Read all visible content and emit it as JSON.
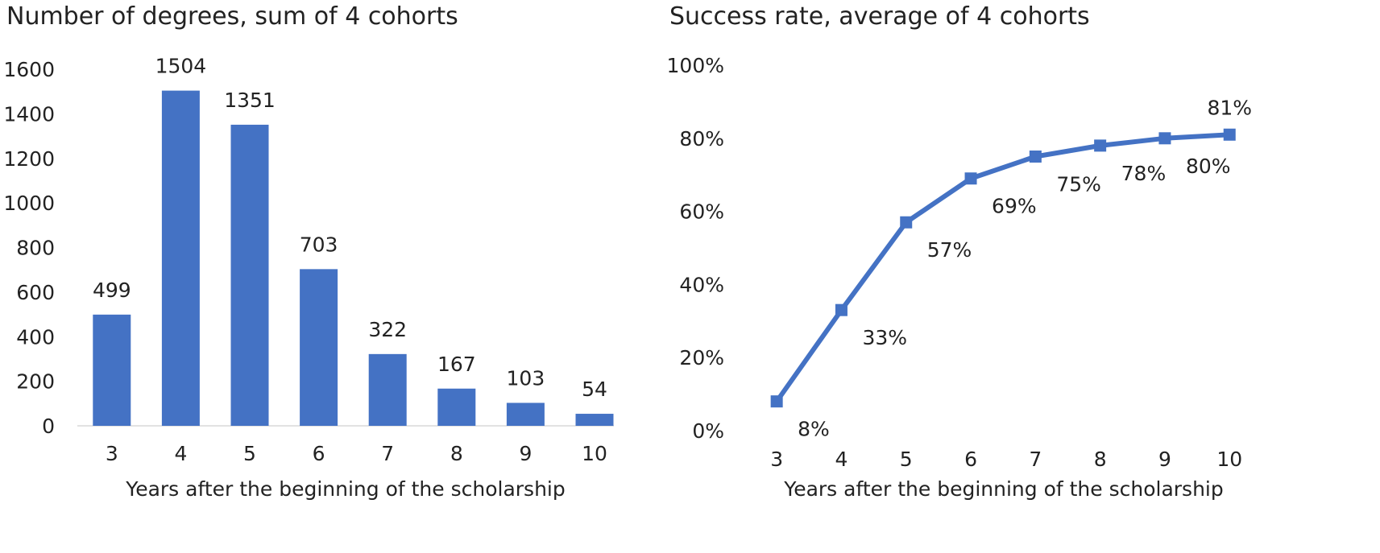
{
  "chart_data": [
    {
      "type": "bar",
      "title": "Number of degrees, sum of 4 cohorts",
      "xlabel": "Years after the beginning of the scholarship",
      "ylabel": "",
      "categories": [
        "3",
        "4",
        "5",
        "6",
        "7",
        "8",
        "9",
        "10"
      ],
      "values": [
        499,
        1504,
        1351,
        703,
        322,
        167,
        103,
        54
      ],
      "data_labels": [
        "499",
        "1504",
        "1351",
        "703",
        "322",
        "167",
        "103",
        "54"
      ],
      "ylim": [
        0,
        1600
      ],
      "yticks": [
        "0",
        "200",
        "400",
        "600",
        "800",
        "1000",
        "1200",
        "1400",
        "1600"
      ],
      "grid": false,
      "legend": "none",
      "color": "#4472c4"
    },
    {
      "type": "line",
      "title": "Success rate, average of 4 cohorts",
      "xlabel": "Years after the beginning of the scholarship",
      "ylabel": "",
      "categories": [
        "3",
        "4",
        "5",
        "6",
        "7",
        "8",
        "9",
        "10"
      ],
      "values": [
        8,
        33,
        57,
        69,
        75,
        78,
        80,
        81
      ],
      "data_labels": [
        "8%",
        "33%",
        "57%",
        "69%",
        "75%",
        "78%",
        "80%",
        "81%"
      ],
      "ylim": [
        0,
        100
      ],
      "yticks": [
        "0%",
        "20%",
        "40%",
        "60%",
        "80%",
        "100%"
      ],
      "grid": false,
      "legend": "none",
      "marker": "square",
      "color": "#4472c4"
    }
  ]
}
